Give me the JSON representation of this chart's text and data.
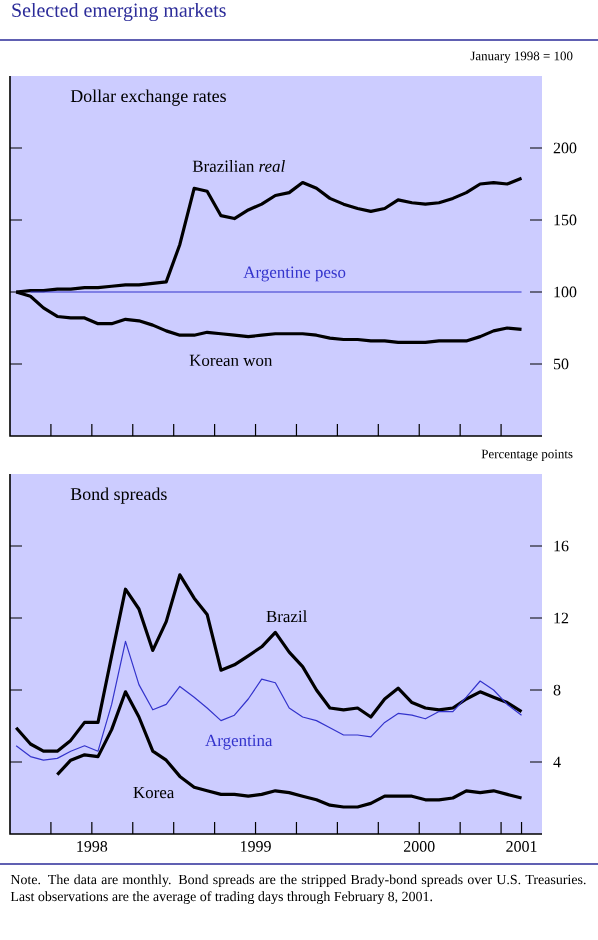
{
  "chart_data": [
    {
      "type": "line",
      "title": "Selected emerging markets",
      "subtitle": "Dollar exchange rates",
      "ylabel": "January 1998 = 100",
      "x": [
        "1998-01-15",
        "1998-02-15",
        "1998-03-15",
        "1998-04-15",
        "1998-05-15",
        "1998-06-15",
        "1998-07-15",
        "1998-08-15",
        "1998-09-15",
        "1998-10-15",
        "1998-11-15",
        "1998-12-15",
        "1999-01-15",
        "1999-02-15",
        "1999-03-15",
        "1999-04-15",
        "1999-05-15",
        "1999-06-15",
        "1999-07-15",
        "1999-08-15",
        "1999-09-15",
        "1999-10-15",
        "1999-11-15",
        "1999-12-15",
        "2000-01-15",
        "2000-02-15",
        "2000-03-15",
        "2000-04-15",
        "2000-05-15",
        "2000-06-15",
        "2000-07-15",
        "2000-08-15",
        "2000-09-15",
        "2000-10-15",
        "2000-11-15",
        "2000-12-15",
        "2001-01-15",
        "2001-02-15"
      ],
      "xlim": [
        "1998-01-01",
        "2001-04-01"
      ],
      "xticks": [
        {
          "value": "1998-04-01",
          "label": null
        },
        {
          "value": "1998-07-01",
          "label": null
        },
        {
          "value": "1998-10-01",
          "label": null
        },
        {
          "value": "1999-01-01",
          "label": null
        },
        {
          "value": "1999-04-01",
          "label": null
        },
        {
          "value": "1999-07-01",
          "label": null
        },
        {
          "value": "1999-10-01",
          "label": null
        },
        {
          "value": "2000-01-01",
          "label": null
        },
        {
          "value": "2000-04-01",
          "label": null
        },
        {
          "value": "2000-07-01",
          "label": null
        },
        {
          "value": "2000-10-01",
          "label": null
        },
        {
          "value": "2001-01-01",
          "label": null
        }
      ],
      "ylim": [
        0,
        250
      ],
      "yticks": [
        50,
        100,
        150,
        200
      ],
      "tick_labels": "y",
      "series": [
        {
          "name": "Brazilian *real*",
          "color": "#000000",
          "values": [
            100,
            101,
            101,
            102,
            102,
            103,
            103,
            104,
            105,
            105,
            106,
            107,
            133,
            172,
            170,
            153,
            151,
            157,
            161,
            167,
            169,
            176,
            172,
            165,
            161,
            158,
            156,
            158,
            164,
            162,
            161,
            162,
            165,
            169,
            175,
            176,
            175,
            179
          ]
        },
        {
          "name": "Argentine peso",
          "color": "#3333cc",
          "values": [
            null,
            100,
            100,
            100,
            100,
            100,
            100,
            100,
            100,
            100,
            100,
            100,
            100,
            100,
            100,
            100,
            100,
            100,
            100,
            100,
            100,
            100,
            100,
            100,
            100,
            100,
            100,
            100,
            100,
            100,
            100,
            100,
            100,
            100,
            100,
            100,
            100,
            100
          ]
        },
        {
          "name": "Korean won",
          "color": "#000000",
          "values": [
            100,
            97,
            89,
            83,
            82,
            82,
            78,
            78,
            81,
            80,
            77,
            73,
            70,
            70,
            72,
            71,
            70,
            69,
            70,
            71,
            71,
            71,
            70,
            68,
            67,
            67,
            66,
            66,
            65,
            65,
            65,
            66,
            66,
            66,
            69,
            73,
            75,
            74
          ]
        }
      ]
    },
    {
      "type": "line",
      "title": "Bond spreads",
      "ylabel": "Percentage points",
      "x": [
        "1998-01-15",
        "1998-02-15",
        "1998-03-15",
        "1998-04-15",
        "1998-05-15",
        "1998-06-15",
        "1998-07-15",
        "1998-08-15",
        "1998-09-15",
        "1998-10-15",
        "1998-11-15",
        "1998-12-15",
        "1999-01-15",
        "1999-02-15",
        "1999-03-15",
        "1999-04-15",
        "1999-05-15",
        "1999-06-15",
        "1999-07-15",
        "1999-08-15",
        "1999-09-15",
        "1999-10-15",
        "1999-11-15",
        "1999-12-15",
        "2000-01-15",
        "2000-02-15",
        "2000-03-15",
        "2000-04-15",
        "2000-05-15",
        "2000-06-15",
        "2000-07-15",
        "2000-08-15",
        "2000-09-15",
        "2000-10-15",
        "2000-11-15",
        "2000-12-15",
        "2001-01-15",
        "2001-02-15"
      ],
      "xlim": [
        "1998-01-01",
        "2001-04-01"
      ],
      "xticks": [
        {
          "value": "1998-04-01",
          "label": null
        },
        {
          "value": "1998-07-01",
          "label": "1998"
        },
        {
          "value": "1998-10-01",
          "label": null
        },
        {
          "value": "1999-01-01",
          "label": null
        },
        {
          "value": "1999-04-01",
          "label": null
        },
        {
          "value": "1999-07-01",
          "label": "1999"
        },
        {
          "value": "1999-10-01",
          "label": null
        },
        {
          "value": "2000-01-01",
          "label": null
        },
        {
          "value": "2000-04-01",
          "label": null
        },
        {
          "value": "2000-07-01",
          "label": "2000"
        },
        {
          "value": "2000-10-01",
          "label": null
        },
        {
          "value": "2001-01-01",
          "label": null
        },
        {
          "value": "2001-02-15",
          "label": "2001"
        }
      ],
      "ylim": [
        0,
        20
      ],
      "yticks": [
        4,
        8,
        12,
        16
      ],
      "series": [
        {
          "name": "Brazil",
          "color": "#000000",
          "values": [
            5.9,
            5.0,
            4.6,
            4.6,
            5.2,
            6.2,
            6.2,
            9.9,
            13.6,
            12.5,
            10.2,
            11.8,
            14.4,
            13.1,
            12.2,
            9.1,
            9.4,
            9.9,
            10.4,
            11.2,
            10.1,
            9.3,
            8.0,
            7.0,
            6.9,
            7.0,
            6.5,
            7.5,
            8.1,
            7.3,
            7.0,
            6.9,
            7.0,
            7.5,
            7.9,
            7.6,
            7.3,
            6.8
          ]
        },
        {
          "name": "Argentina",
          "color": "#3333cc",
          "values": [
            4.9,
            4.3,
            4.1,
            4.2,
            4.6,
            4.9,
            4.6,
            7.2,
            10.7,
            8.3,
            6.9,
            7.2,
            8.2,
            7.6,
            7.0,
            6.3,
            6.6,
            7.5,
            8.6,
            8.4,
            7.0,
            6.5,
            6.3,
            5.9,
            5.5,
            5.5,
            5.4,
            6.2,
            6.7,
            6.6,
            6.4,
            6.8,
            6.8,
            7.6,
            8.5,
            8.0,
            7.2,
            6.6
          ]
        },
        {
          "name": "Korea",
          "color": "#000000",
          "values": [
            null,
            null,
            null,
            3.3,
            4.1,
            4.4,
            4.3,
            5.8,
            7.9,
            6.5,
            4.6,
            4.1,
            3.2,
            2.6,
            2.4,
            2.2,
            2.2,
            2.1,
            2.2,
            2.4,
            2.3,
            2.1,
            1.9,
            1.6,
            1.5,
            1.5,
            1.7,
            2.1,
            2.1,
            2.1,
            1.9,
            1.9,
            2.0,
            2.4,
            2.3,
            2.4,
            2.2,
            2.0
          ]
        }
      ],
      "annotations": [
        "Note. The data are monthly. Bond spreads are the stripped Brady-bond spreads over U.S. Treasuries. Last observations are the average of trading days through February 8, 2001."
      ]
    }
  ]
}
